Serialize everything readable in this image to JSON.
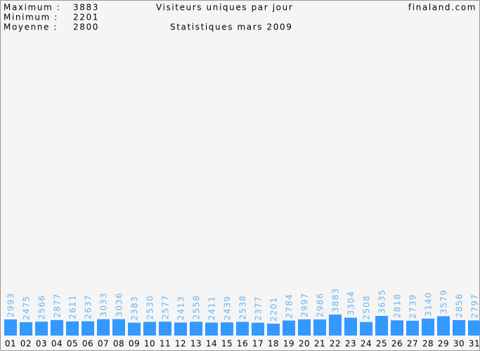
{
  "chart_data": {
    "type": "bar",
    "title": "Visiteurs uniques par jour",
    "subtitle": "Statistiques mars 2009",
    "site": "finaland.com",
    "stats": [
      {
        "label": "Maximum :",
        "value": 3883
      },
      {
        "label": "Minimum :",
        "value": 2201
      },
      {
        "label": "Moyenne :",
        "value": 2800
      }
    ],
    "color": "#3399ff",
    "categories": [
      "01",
      "02",
      "03",
      "04",
      "05",
      "06",
      "07",
      "08",
      "09",
      "10",
      "11",
      "12",
      "13",
      "14",
      "15",
      "16",
      "17",
      "18",
      "19",
      "20",
      "21",
      "22",
      "23",
      "24",
      "25",
      "26",
      "27",
      "28",
      "29",
      "30",
      "31"
    ],
    "values": [
      2993,
      2475,
      2566,
      2877,
      2611,
      2637,
      3033,
      3036,
      2383,
      2530,
      2577,
      2413,
      2558,
      2411,
      2439,
      2538,
      2377,
      2201,
      2784,
      2997,
      2986,
      3883,
      3304,
      2508,
      3635,
      2818,
      2739,
      3140,
      3579,
      2856,
      2797
    ]
  }
}
